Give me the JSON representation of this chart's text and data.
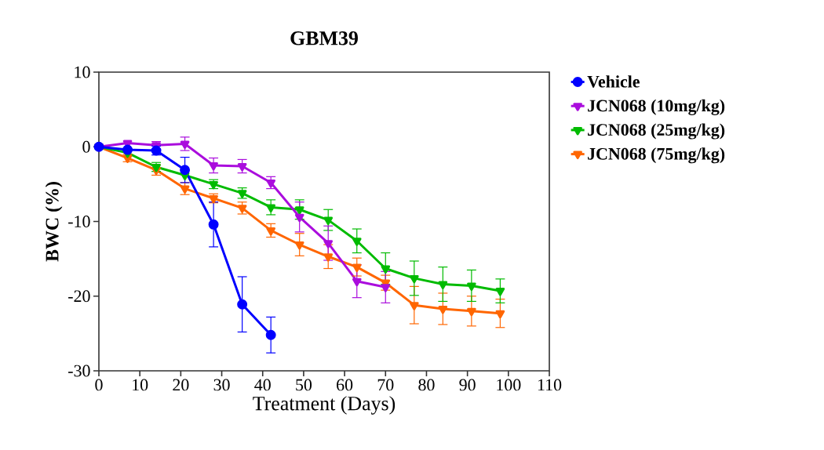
{
  "chart_data": {
    "type": "line",
    "title": "GBM39",
    "xlabel": "Treatment (Days)",
    "ylabel": "BWC (%)",
    "x": [
      0,
      7,
      14,
      21,
      28,
      35,
      42,
      49,
      56,
      63,
      70,
      77,
      84,
      91,
      98
    ],
    "xlim": [
      0,
      110
    ],
    "xticks": [
      0,
      10,
      20,
      30,
      40,
      50,
      60,
      70,
      80,
      90,
      100,
      110
    ],
    "ylim": [
      -30,
      10
    ],
    "yticks": [
      -30,
      -20,
      -10,
      0,
      10
    ],
    "grid": false,
    "legend": "right",
    "line_style": "solid",
    "series": [
      {
        "name": "Vehicle",
        "color": "#0000ff",
        "marker": "circle",
        "x": [
          0,
          7,
          14,
          21,
          28,
          35,
          42
        ],
        "values": [
          0,
          -0.4,
          -0.5,
          -3.1,
          -10.4,
          -21.1,
          -25.2
        ],
        "errors": [
          null,
          null,
          0.6,
          1.7,
          3.0,
          3.7,
          2.4
        ]
      },
      {
        "name": "JCN068 (10mg/kg)",
        "color": "#aa0ddd",
        "marker": "triangle",
        "x": [
          0,
          7,
          14,
          21,
          28,
          35,
          42,
          49,
          56,
          63,
          70
        ],
        "values": [
          0,
          0.5,
          0.2,
          0.4,
          -2.5,
          -2.6,
          -4.8,
          -9.4,
          -12.9,
          -18.0,
          -18.8
        ],
        "errors": [
          null,
          null,
          0.5,
          0.9,
          1.0,
          0.9,
          0.8,
          2.0,
          2.3,
          2.2,
          2.1
        ]
      },
      {
        "name": "JCN068 (25mg/kg)",
        "color": "#00bb00",
        "marker": "triangle",
        "values": [
          0,
          -0.8,
          -2.7,
          -3.8,
          -5.0,
          -6.2,
          -8.1,
          -8.4,
          -9.8,
          -12.6,
          -16.3,
          -17.6,
          -18.4,
          -18.6,
          -19.3
        ],
        "errors": [
          null,
          null,
          0.6,
          null,
          0.6,
          0.7,
          1.0,
          1.3,
          1.4,
          1.6,
          2.1,
          2.3,
          2.3,
          2.1,
          1.6
        ]
      },
      {
        "name": "JCN068 (75mg/kg)",
        "color": "#ff6600",
        "marker": "triangle",
        "values": [
          0,
          -1.5,
          -3.1,
          -5.6,
          -6.9,
          -8.2,
          -11.2,
          -13.1,
          -14.7,
          -16.1,
          -18.2,
          -21.2,
          -21.7,
          -22.0,
          -22.3
        ],
        "errors": [
          null,
          0.5,
          0.7,
          0.8,
          0.6,
          0.8,
          0.9,
          1.5,
          1.6,
          1.2,
          1.0,
          2.5,
          2.1,
          2.0,
          1.9
        ]
      }
    ]
  }
}
